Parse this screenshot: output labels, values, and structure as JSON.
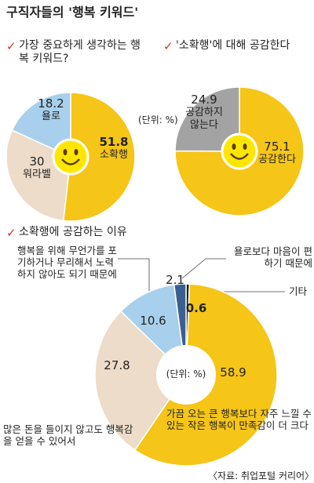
{
  "title": "구직자들의 '행복 키워드'",
  "source": "〈자료: 취업포털 커리어〉",
  "chart_data": [
    {
      "type": "pie",
      "title": "가장 중요하게 생각하는 행복 키워드?",
      "categories": [
        "소확행",
        "워라벨",
        "욜로"
      ],
      "values": [
        51.8,
        30,
        18.2
      ],
      "colors": [
        "#f5c518",
        "#eddcc9",
        "#a8d0ec"
      ]
    },
    {
      "type": "pie",
      "title": "'소확행'에 대해 공감한다",
      "unit": "(단위: %)",
      "categories": [
        "공감한다",
        "공감하지 않는다"
      ],
      "values": [
        75.1,
        24.9
      ],
      "colors": [
        "#f5c518",
        "#a3a3a3"
      ]
    },
    {
      "type": "pie",
      "title": "소확행에 공감하는 이유",
      "unit": "(단위: %)",
      "categories": [
        "기타",
        "가끔 오는 큰 행복보다 자주 느낄 수 있는 작은 행복이 만족감이 더 크다",
        "많은 돈을 들이지 않고도 행복감을 얻을 수 있어서",
        "행복을 위해 무언가를 포기하거나 무리해서 노력하지 않아도 되기 때문에",
        "욜로보다 마음이 편하기 때문에"
      ],
      "values": [
        0.6,
        58.9,
        27.8,
        10.6,
        2.1
      ],
      "colors": [
        "#222222",
        "#f5c518",
        "#eddcc9",
        "#a8d0ec",
        "#3b5f8f"
      ]
    }
  ]
}
